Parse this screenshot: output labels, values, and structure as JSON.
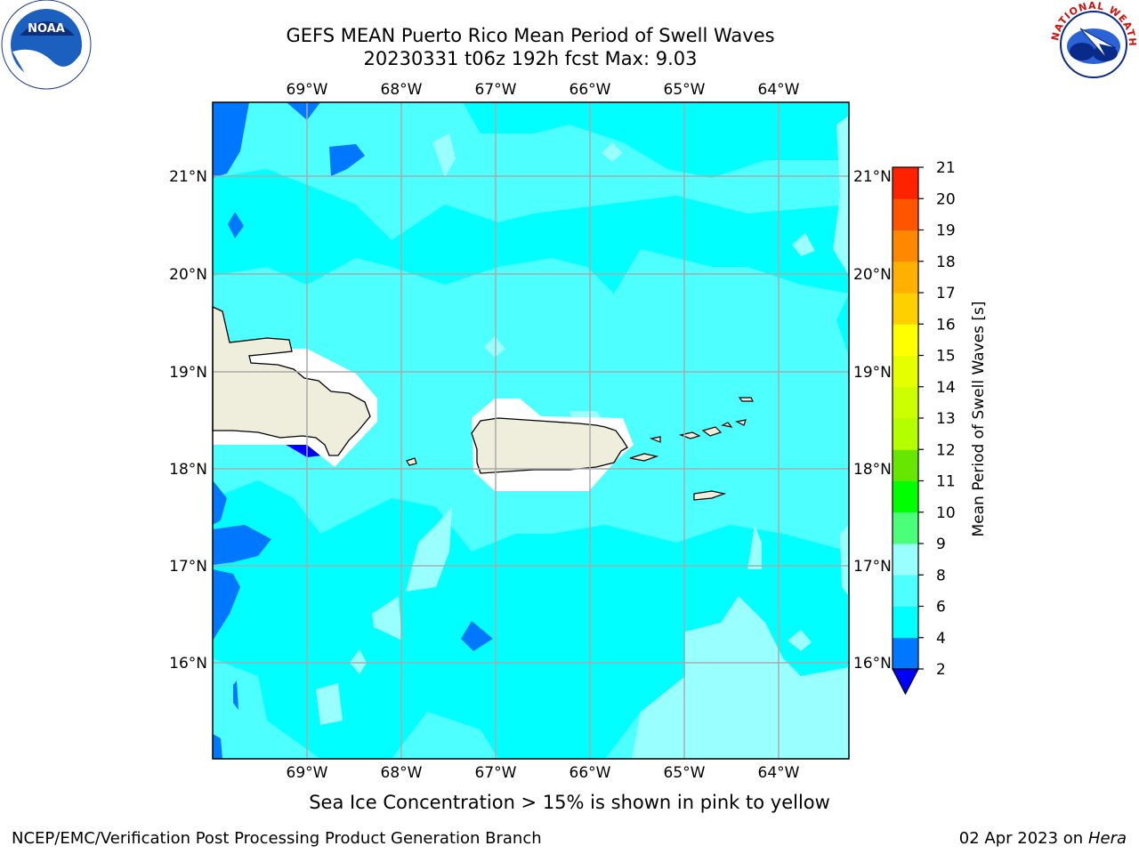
{
  "header": {
    "title_line1": "GEFS MEAN Puerto Rico Mean Period of Swell Waves",
    "title_line2": "20230331 t06z 192h fcst   Max: 9.03"
  },
  "logos": {
    "left": "NOAA",
    "right": "NATIONAL WEATHER SERVICE"
  },
  "map": {
    "lon_labels": [
      "69°W",
      "68°W",
      "67°W",
      "66°W",
      "65°W",
      "64°W"
    ],
    "lat_labels": [
      "21°N",
      "20°N",
      "19°N",
      "18°N",
      "17°N",
      "16°N"
    ],
    "note": "Sea Ice Concentration > 15% is shown in pink to yellow"
  },
  "colorbar": {
    "label": "Mean Period of Swell Waves [s]",
    "ticks": [
      "2",
      "4",
      "6",
      "8",
      "9",
      "10",
      "11",
      "12",
      "13",
      "14",
      "15",
      "16",
      "17",
      "18",
      "19",
      "20",
      "21"
    ],
    "colors": [
      "#0000ff",
      "#0077ff",
      "#00ffff",
      "#4dffff",
      "#99ffff",
      "#4cff7a",
      "#00ff00",
      "#66e600",
      "#b3ff00",
      "#ccff00",
      "#e6ff00",
      "#ffff00",
      "#ffd000",
      "#ffb000",
      "#ff8800",
      "#ff5500",
      "#ff2200",
      "#ff0000"
    ]
  },
  "footer": {
    "left": "NCEP/EMC/Verification Post Processing Product Generation Branch",
    "right_prefix": "02 Apr 2023 on ",
    "right_machine": "Hera"
  }
}
